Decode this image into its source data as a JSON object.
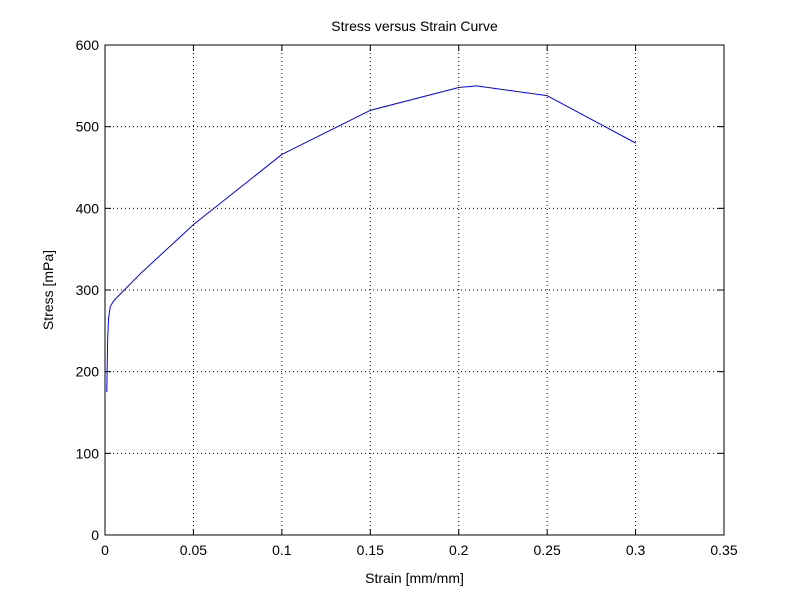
{
  "chart_data": {
    "type": "line",
    "title": "Stress versus Strain Curve",
    "xlabel": "Strain [mm/mm]",
    "ylabel": "Stress [mPa]",
    "xlim": [
      0,
      0.35
    ],
    "ylim": [
      0,
      600
    ],
    "xticks": [
      0,
      0.05,
      0.1,
      0.15,
      0.2,
      0.25,
      0.3,
      0.35
    ],
    "xtick_labels": [
      "0",
      "0.05",
      "0.1",
      "0.15",
      "0.2",
      "0.25",
      "0.3",
      "0.35"
    ],
    "yticks": [
      0,
      100,
      200,
      300,
      400,
      500,
      600
    ],
    "ytick_labels": [
      "0",
      "100",
      "200",
      "300",
      "400",
      "500",
      "600"
    ],
    "grid": true,
    "series": [
      {
        "color": "#0000ff",
        "x": [
          0.001,
          0.0015,
          0.002,
          0.003,
          0.005,
          0.01,
          0.02,
          0.05,
          0.1,
          0.15,
          0.2,
          0.21,
          0.25,
          0.3
        ],
        "y": [
          175,
          240,
          265,
          280,
          287,
          298,
          320,
          380,
          466,
          520,
          548,
          550,
          538,
          480
        ]
      }
    ]
  }
}
